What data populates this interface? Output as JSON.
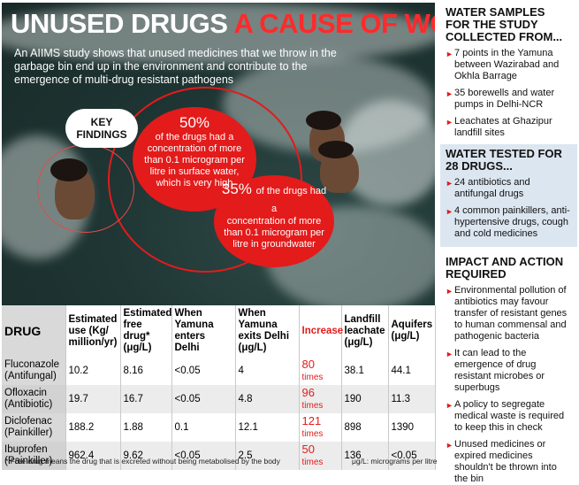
{
  "headline": {
    "part1": "UNUSED DRUGS",
    "part2": "A CAUSE OF WORRY"
  },
  "intro": "An AIIMS study shows that unused medicines that we throw in the garbage bin end up in the environment and contribute to the emergence of multi-drug resistant pathogens",
  "key_findings": {
    "label": "KEY FINDINGS"
  },
  "finding1": {
    "pct": "50%",
    "text": "of the drugs had a concentration of more than 0.1 microgram per litre in surface water, which is very high"
  },
  "finding2": {
    "pct": "35%",
    "text_head": "of the drugs had a",
    "text": "concentration of more than 0.1 microgram per litre in groundwater"
  },
  "table": {
    "headers": [
      "DRUG",
      "Estimated use (Kg/ million/yr)",
      "Estimated free drug* (μg/L)",
      "When Yamuna enters Delhi",
      "When Yamuna exits Delhi (μg/L)",
      "Increase",
      "Landfill leachate (μg/L)",
      "Aquifers (μg/L)"
    ],
    "rows": [
      {
        "drug": "Fluconazole (Antifungal)",
        "use": "10.2",
        "free": "8.16",
        "enters": "<0.05",
        "exits": "4",
        "inc_num": "80",
        "inc_unit": "times",
        "leachate": "38.1",
        "aquifers": "44.1"
      },
      {
        "drug": "Ofloxacin (Antibiotic)",
        "use": "19.7",
        "free": "16.7",
        "enters": "<0.05",
        "exits": "4.8",
        "inc_num": "96",
        "inc_unit": "times",
        "leachate": "190",
        "aquifers": "11.3"
      },
      {
        "drug": "Diclofenac (Painkiller)",
        "use": "188.2",
        "free": "1.88",
        "enters": "0.1",
        "exits": "12.1",
        "inc_num": "121",
        "inc_unit": "times",
        "leachate": "898",
        "aquifers": "1390"
      },
      {
        "drug": "Ibuprofen (Painkiller)",
        "use": "962.4",
        "free": "9.62",
        "enters": "<0.05",
        "exits": "2.5",
        "inc_num": "50",
        "inc_unit": "times",
        "leachate": "136",
        "aquifers": "<0.05"
      }
    ],
    "footnote": "* Free drug means the drug that is excreted without being metabolised by the body",
    "unit_note": "μg/L: micrograms per litre"
  },
  "sidebar": {
    "samples": {
      "title": "WATER SAMPLES FOR THE STUDY COLLECTED FROM...",
      "items": [
        "7 points in the Yamuna between Wazirabad and Okhla Barrage",
        "35 borewells and water pumps in Delhi-NCR",
        "Leachates at Ghazipur landfill sites"
      ]
    },
    "tested": {
      "title": "WATER TESTED FOR 28 DRUGS...",
      "items": [
        "24 antibiotics and antifungal drugs",
        "4 common painkillers, anti-hypertensive drugs, cough and cold medicines"
      ]
    },
    "impact": {
      "title": "IMPACT AND ACTION REQUIRED",
      "items": [
        "Environmental pollution of antibiotics may favour transfer of resistant genes to human commensal and pathogenic bacteria",
        "It can lead to the emergence of drug resistant microbes or superbugs",
        "A policy to segregate medical waste is required to keep this in check",
        "Unused medicines or expired medicines shouldn't be thrown into the bin"
      ]
    }
  },
  "colors": {
    "accent_red": "#e31b1b",
    "sidebar_highlight": "#dce6f0",
    "water_dark": "#1f3634"
  }
}
